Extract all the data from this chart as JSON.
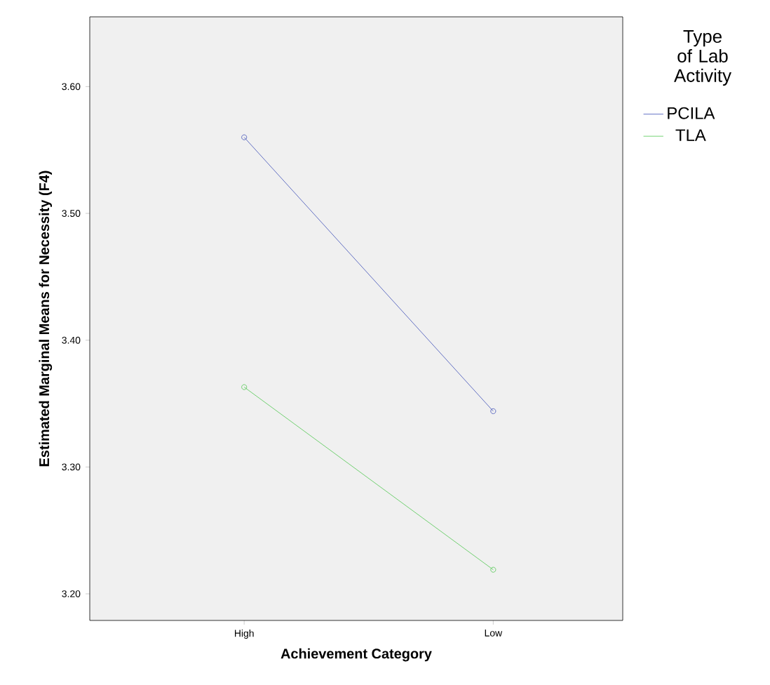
{
  "chart_data": {
    "type": "line",
    "xlabel": "Achievement Category",
    "ylabel": "Estimated Marginal Means for Necessity (F4)",
    "legend_title": "Type of Lab Activity",
    "categories": [
      "High",
      "Low"
    ],
    "series": [
      {
        "name": "PCILA",
        "color": "#4050b8",
        "values": [
          3.56,
          3.344
        ]
      },
      {
        "name": "TLA",
        "color": "#50c850",
        "values": [
          3.363,
          3.219
        ]
      }
    ],
    "ylim": [
      3.179,
      3.655
    ],
    "yticks": [
      {
        "value": 3.2,
        "label": "3.20"
      },
      {
        "value": 3.3,
        "label": "3.30"
      },
      {
        "value": 3.4,
        "label": "3.40"
      },
      {
        "value": 3.5,
        "label": "3.50"
      },
      {
        "value": 3.6,
        "label": "3.60"
      }
    ],
    "marker": "circle",
    "grid": false,
    "legend": "top right"
  }
}
